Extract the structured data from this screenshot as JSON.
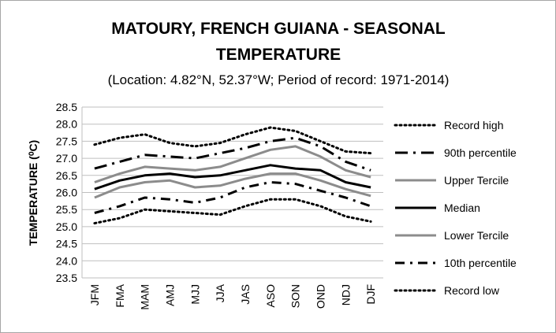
{
  "chart_data": {
    "type": "line",
    "title_line1": "MATOURY, FRENCH GUIANA - SEASONAL",
    "title_line2": "TEMPERATURE",
    "subtitle": "(Location: 4.82°N, 52.37°W; Period of record: 1971-2014)",
    "xlabel": "",
    "ylabel": "TEMPERATURE (⁰C)",
    "ylim": [
      23.5,
      28.5
    ],
    "ytick_step": 0.5,
    "grid": true,
    "legend_position": "right",
    "categories": [
      "JFM",
      "FMA",
      "MAM",
      "AMJ",
      "MJJ",
      "JJA",
      "JAS",
      "ASO",
      "SON",
      "OND",
      "NDJ",
      "DJF"
    ],
    "series": [
      {
        "name": "Record high",
        "color": "#000000",
        "style": "dotted",
        "values": [
          27.4,
          27.6,
          27.7,
          27.45,
          27.35,
          27.45,
          27.7,
          27.9,
          27.8,
          27.5,
          27.2,
          27.15
        ]
      },
      {
        "name": "90th percentile",
        "color": "#000000",
        "style": "dash-dot-long",
        "values": [
          26.7,
          26.9,
          27.1,
          27.05,
          27.0,
          27.15,
          27.3,
          27.5,
          27.6,
          27.35,
          26.9,
          26.65
        ]
      },
      {
        "name": "Upper Tercile",
        "color": "#8c8c8c",
        "style": "solid",
        "values": [
          26.3,
          26.55,
          26.75,
          26.7,
          26.65,
          26.75,
          27.0,
          27.25,
          27.35,
          27.05,
          26.65,
          26.45
        ]
      },
      {
        "name": "Median",
        "color": "#000000",
        "style": "solid",
        "values": [
          26.1,
          26.35,
          26.5,
          26.55,
          26.45,
          26.5,
          26.65,
          26.8,
          26.7,
          26.65,
          26.3,
          26.15
        ]
      },
      {
        "name": "Lower Tercile",
        "color": "#8c8c8c",
        "style": "solid",
        "values": [
          25.85,
          26.15,
          26.3,
          26.35,
          26.15,
          26.2,
          26.4,
          26.55,
          26.55,
          26.35,
          26.1,
          25.9
        ]
      },
      {
        "name": "10th percentile",
        "color": "#000000",
        "style": "dash-dot",
        "values": [
          25.4,
          25.6,
          25.85,
          25.8,
          25.7,
          25.85,
          26.15,
          26.3,
          26.25,
          26.05,
          25.85,
          25.6
        ]
      },
      {
        "name": "Record low",
        "color": "#000000",
        "style": "dotted",
        "values": [
          25.1,
          25.25,
          25.5,
          25.45,
          25.4,
          25.35,
          25.6,
          25.8,
          25.8,
          25.6,
          25.3,
          25.15
        ]
      }
    ]
  }
}
